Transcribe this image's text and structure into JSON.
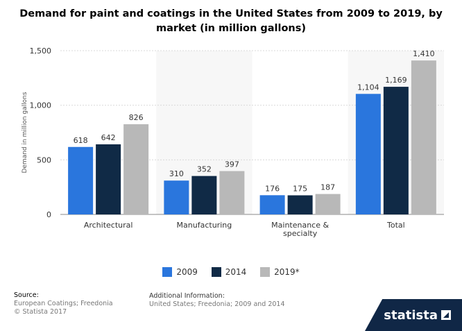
{
  "title": "Demand for paint and coatings in the United States from 2009 to 2019, by market (in million gallons)",
  "chart_data": {
    "type": "bar",
    "categories": [
      "Architectural",
      "Manufacturing",
      "Maintenance & specialty",
      "Total"
    ],
    "series": [
      {
        "name": "2009",
        "values": [
          618,
          310,
          176,
          1104
        ],
        "color": "#2a76dd"
      },
      {
        "name": "2014",
        "values": [
          642,
          352,
          175,
          1169
        ],
        "color": "#102a46"
      },
      {
        "name": "2019*",
        "values": [
          826,
          397,
          187,
          1410
        ],
        "color": "#b8b8b8"
      }
    ],
    "value_labels": [
      [
        "618",
        "310",
        "176",
        "1,104"
      ],
      [
        "642",
        "352",
        "175",
        "1,169"
      ],
      [
        "826",
        "397",
        "187",
        "1,410"
      ]
    ],
    "ylabel": "Demand in million gallons",
    "ylim": [
      0,
      1500
    ],
    "yticks": [
      0,
      500,
      1000,
      1500
    ],
    "ytick_labels": [
      "0",
      "500",
      "1,000",
      "1,500"
    ],
    "grid": true,
    "legend_position": "bottom"
  },
  "footer": {
    "source_heading": "Source:",
    "source_lines": [
      "European Coatings; Freedonia",
      "© Statista 2017"
    ],
    "info_heading": "Additional Information:",
    "info_line": "United States; Freedonia; 2009 and 2014"
  },
  "brand": {
    "name": "statista",
    "icon": "statista-arrow-icon"
  }
}
